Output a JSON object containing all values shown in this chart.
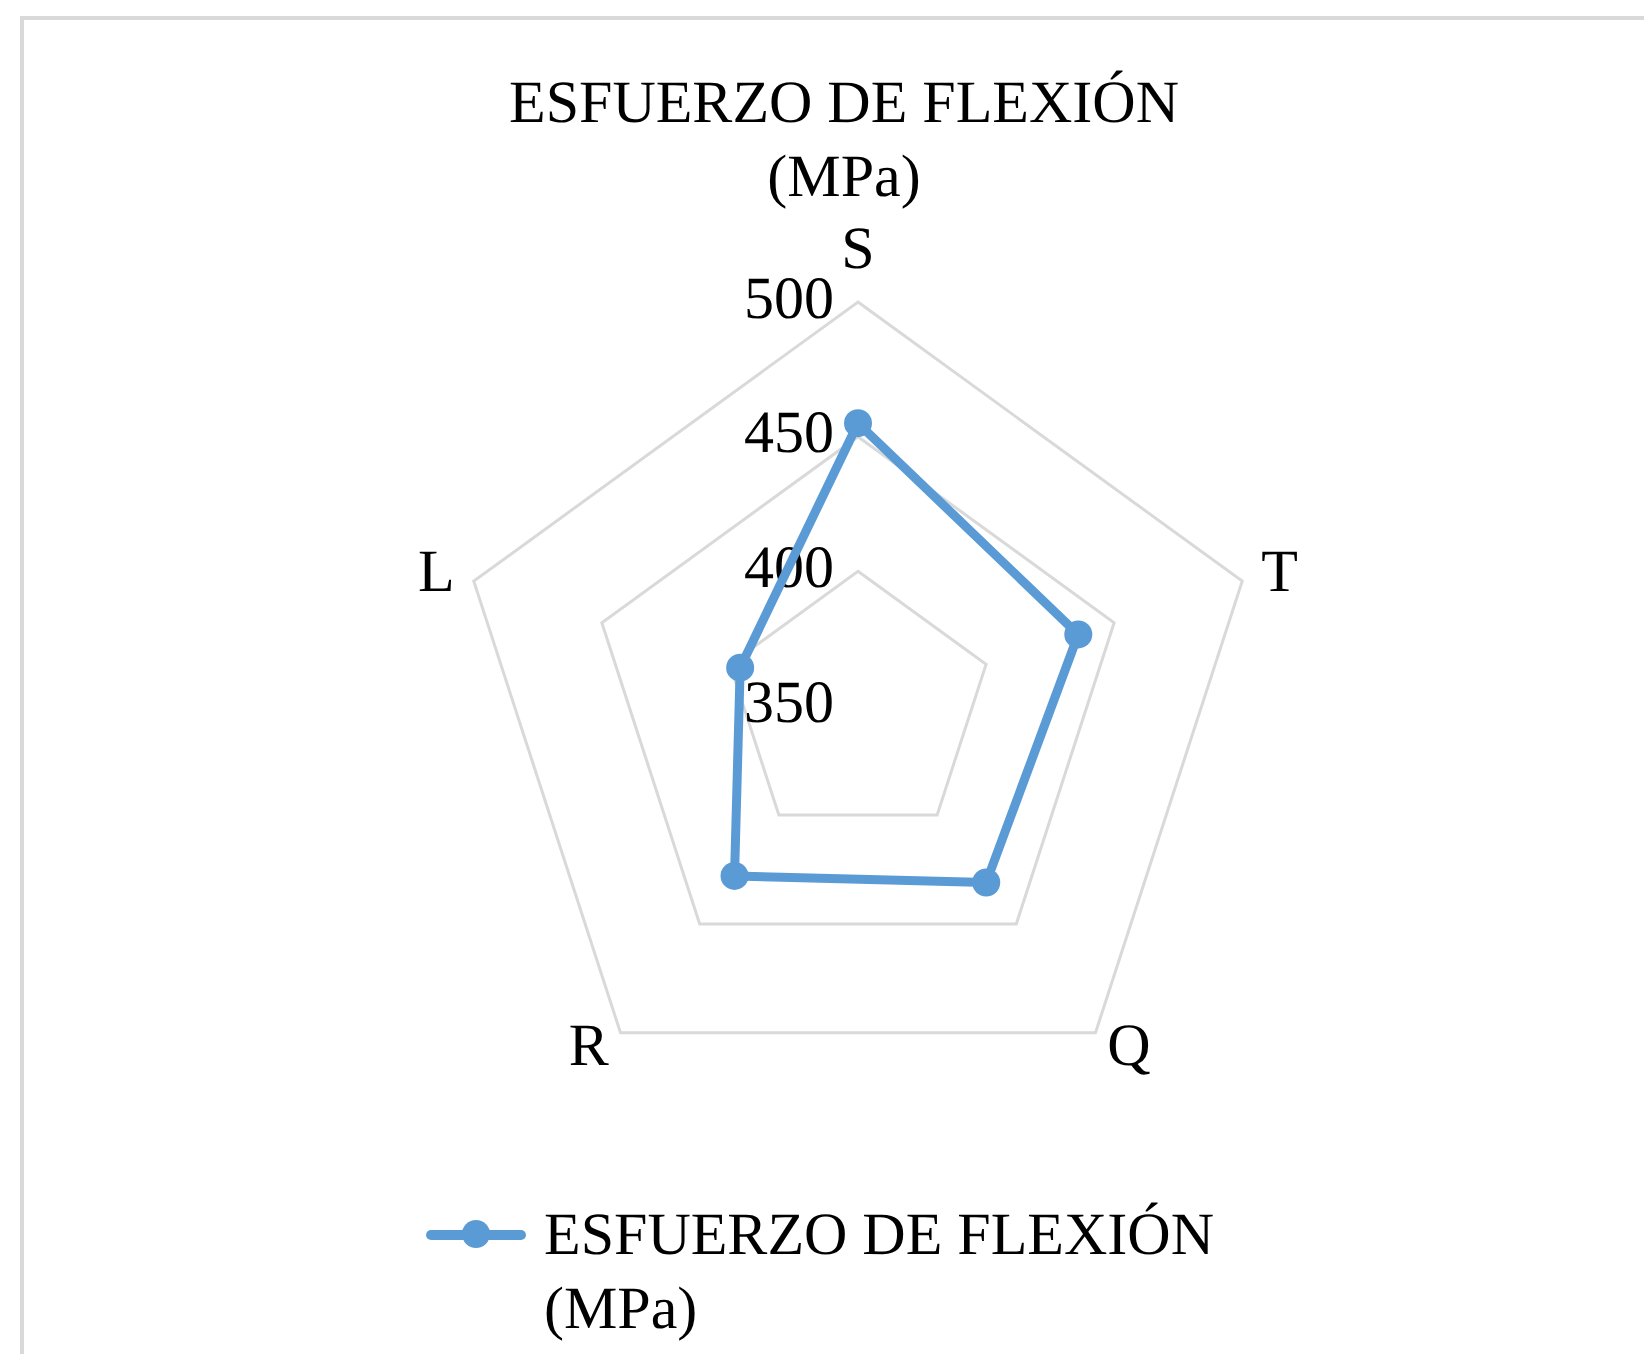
{
  "chart_data": {
    "type": "radar",
    "title": "ESFUERZO DE FLEXIÓN (MPa)",
    "categories": [
      "S",
      "T",
      "Q",
      "R",
      "L"
    ],
    "series": [
      {
        "name": "ESFUERZO DE FLEXIÓN (MPa)",
        "color": "#5b9bd5",
        "values": [
          455,
          436,
          431,
          428,
          396
        ]
      }
    ],
    "ylim": [
      350,
      500
    ],
    "yticks": [
      350,
      400,
      450,
      500
    ],
    "grid": true,
    "legend": "bottom",
    "marker": "circle",
    "line_style": "solid"
  }
}
